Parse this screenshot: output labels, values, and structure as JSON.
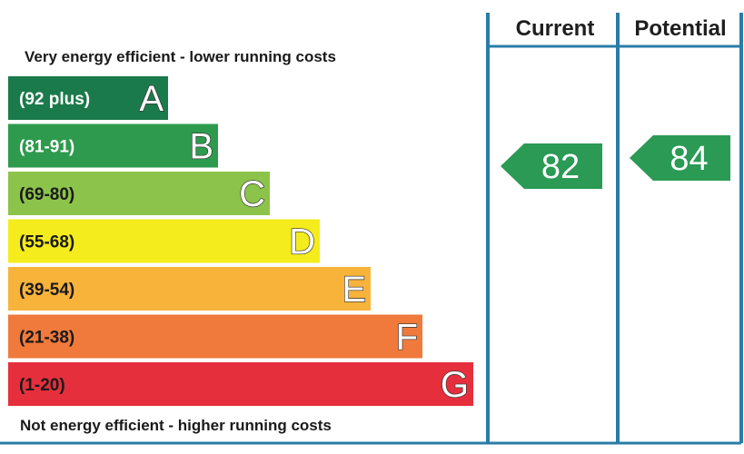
{
  "header": {
    "current_label": "Current",
    "potential_label": "Potential"
  },
  "top_caption": "Very energy efficient - lower running costs",
  "bottom_caption": "Not energy efficient - higher running costs",
  "chart_data": {
    "type": "bar",
    "bands": [
      {
        "letter": "A",
        "range": "(92 plus)",
        "color": "#1b7a4b",
        "label_color": "#ffffff"
      },
      {
        "letter": "B",
        "range": "(81-91)",
        "color": "#2d9a4d",
        "label_color": "#ffffff"
      },
      {
        "letter": "C",
        "range": "(69-80)",
        "color": "#8cc34a",
        "label_color": "#1a1a1a"
      },
      {
        "letter": "D",
        "range": "(55-68)",
        "color": "#f4ec1c",
        "label_color": "#1a1a1a"
      },
      {
        "letter": "E",
        "range": "(39-54)",
        "color": "#f7b33a",
        "label_color": "#1a1a1a"
      },
      {
        "letter": "F",
        "range": "(21-38)",
        "color": "#ef7a3c",
        "label_color": "#1a1a1a"
      },
      {
        "letter": "G",
        "range": "(1-20)",
        "color": "#e52f3c",
        "label_color": "#1a1a1a"
      }
    ],
    "current": {
      "value": 82,
      "band": "B",
      "color": "#2a9a55"
    },
    "potential": {
      "value": 84,
      "band": "B",
      "color": "#2a9a55"
    },
    "frame_color": "#2a7ca8"
  }
}
